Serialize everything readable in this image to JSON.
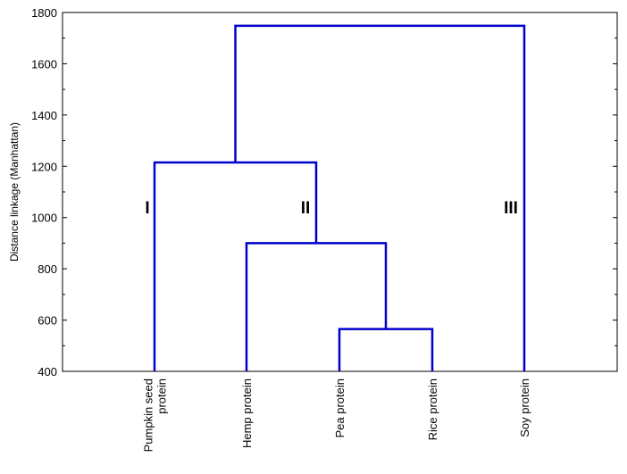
{
  "chart_data": {
    "type": "dendrogram",
    "ylabel": "Distance linkage (Manhattan)",
    "xlabel": "",
    "ylim": [
      400,
      1800
    ],
    "yticks": [
      400,
      600,
      800,
      1000,
      1200,
      1400,
      1600,
      1800
    ],
    "leaves": [
      {
        "id": "pumpkin",
        "label_lines": [
          "Pumpkin seed",
          "protein"
        ]
      },
      {
        "id": "hemp",
        "label_lines": [
          "Hemp protein"
        ]
      },
      {
        "id": "pea",
        "label_lines": [
          "Pea protein"
        ]
      },
      {
        "id": "rice",
        "label_lines": [
          "Rice protein"
        ]
      },
      {
        "id": "soy",
        "label_lines": [
          "Soy protein"
        ]
      }
    ],
    "merges": [
      {
        "id": "m1",
        "left": "pea",
        "right": "rice",
        "height": 565
      },
      {
        "id": "m2",
        "left": "hemp",
        "right": "m1",
        "height": 900
      },
      {
        "id": "m3",
        "left": "pumpkin",
        "right": "m2",
        "height": 1215
      },
      {
        "id": "m4",
        "left": "m3",
        "right": "soy",
        "height": 1748
      }
    ],
    "clusters": [
      {
        "label": "I",
        "near": "pumpkin",
        "y": 1040
      },
      {
        "label": "II",
        "near": "m2",
        "y": 1040
      },
      {
        "label": "III",
        "near": "soy",
        "y": 1040
      }
    ]
  }
}
